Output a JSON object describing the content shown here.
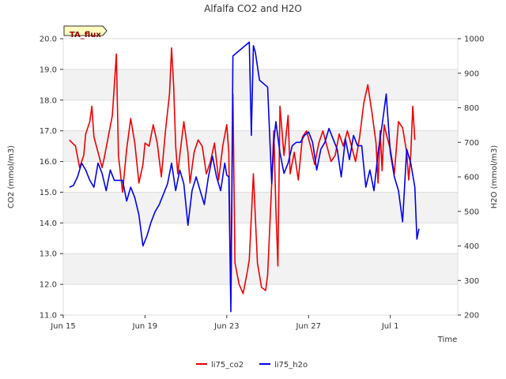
{
  "chart_data": {
    "type": "line",
    "title": "Alfalfa CO2 and H2O",
    "xlabel": "Time",
    "ylabel": "CO2 (mmol/m3)",
    "y2label": "H2O (mmol/m3)",
    "badge": "TA_flux",
    "xlim": [
      0,
      19.3
    ],
    "ylim": [
      11.0,
      20.0
    ],
    "y2lim": [
      200,
      1000
    ],
    "x_ticks": [
      {
        "x": 0,
        "label": "Jun 15"
      },
      {
        "x": 4,
        "label": "Jun 19"
      },
      {
        "x": 8,
        "label": "Jun 23"
      },
      {
        "x": 12,
        "label": "Jun 27"
      },
      {
        "x": 16,
        "label": "Jul 1"
      }
    ],
    "y_ticks": [
      "11.0",
      "12.0",
      "13.0",
      "14.0",
      "15.0",
      "16.0",
      "17.0",
      "18.0",
      "19.0",
      "20.0"
    ],
    "y2_ticks": [
      "200",
      "300",
      "400",
      "500",
      "600",
      "700",
      "800",
      "900",
      "1000"
    ],
    "bands": [
      [
        12.0,
        13.0
      ],
      [
        14.0,
        15.0
      ],
      [
        16.0,
        17.0
      ],
      [
        18.0,
        19.0
      ]
    ],
    "legend": "bottom-center",
    "series": [
      {
        "name": "li75_co2",
        "axis": "left",
        "color": "#ee0000",
        "x": [
          0.3,
          0.6,
          0.8,
          1.0,
          1.1,
          1.3,
          1.4,
          1.5,
          1.7,
          1.9,
          2.0,
          2.2,
          2.4,
          2.6,
          2.7,
          2.9,
          3.1,
          3.3,
          3.5,
          3.7,
          3.9,
          4.0,
          4.2,
          4.4,
          4.6,
          4.8,
          5.0,
          5.2,
          5.3,
          5.4,
          5.5,
          5.6,
          5.7,
          5.9,
          6.1,
          6.2,
          6.4,
          6.6,
          6.8,
          7.0,
          7.2,
          7.4,
          7.6,
          7.8,
          8.0,
          8.1,
          8.2,
          8.3,
          8.4,
          8.6,
          8.8,
          9.0,
          9.1,
          9.3,
          9.5,
          9.7,
          9.9,
          10.0,
          10.1,
          10.2,
          10.3,
          10.4,
          10.5,
          10.6,
          10.8,
          11.0,
          11.1,
          11.3,
          11.5,
          11.7,
          11.9,
          12.1,
          12.3,
          12.5,
          12.7,
          12.9,
          13.1,
          13.3,
          13.5,
          13.7,
          13.9,
          14.1,
          14.3,
          14.5,
          14.7,
          14.9,
          15.1,
          15.3,
          15.4,
          15.5,
          15.6,
          15.7,
          15.8,
          16.0,
          16.2,
          16.4,
          16.6,
          16.8,
          16.9,
          17.0,
          17.1,
          17.2
        ],
        "values": [
          16.7,
          16.5,
          15.8,
          16.2,
          16.9,
          17.3,
          17.8,
          16.8,
          16.3,
          15.8,
          16.1,
          16.8,
          17.5,
          19.5,
          16.2,
          15.0,
          16.4,
          17.4,
          16.6,
          15.3,
          15.9,
          16.6,
          16.5,
          17.2,
          16.6,
          15.5,
          17.0,
          18.2,
          19.7,
          18.5,
          16.5,
          15.6,
          16.2,
          17.3,
          16.3,
          15.3,
          16.3,
          16.7,
          16.5,
          15.6,
          16.0,
          16.6,
          15.4,
          16.5,
          17.2,
          16.3,
          11.5,
          18.2,
          12.7,
          12.0,
          11.7,
          12.4,
          12.8,
          15.6,
          12.7,
          11.9,
          11.8,
          12.3,
          13.8,
          15.3,
          17.0,
          14.5,
          12.6,
          17.8,
          16.2,
          17.5,
          15.6,
          16.3,
          15.4,
          16.8,
          17.0,
          16.5,
          15.9,
          16.6,
          17.0,
          16.5,
          16.0,
          16.2,
          16.9,
          16.5,
          17.0,
          16.5,
          16.0,
          16.8,
          17.9,
          18.5,
          17.6,
          16.6,
          15.3,
          17.0,
          15.7,
          17.2,
          16.9,
          16.4,
          15.6,
          17.3,
          17.1,
          16.3,
          15.4,
          16.2,
          17.8,
          16.7
        ]
      },
      {
        "name": "li75_h2o",
        "axis": "right",
        "color": "#0000ee",
        "x": [
          0.3,
          0.5,
          0.7,
          0.9,
          1.1,
          1.3,
          1.5,
          1.7,
          1.9,
          2.1,
          2.3,
          2.5,
          2.7,
          2.9,
          3.1,
          3.3,
          3.5,
          3.7,
          3.9,
          4.1,
          4.3,
          4.5,
          4.7,
          4.9,
          5.1,
          5.3,
          5.5,
          5.7,
          5.9,
          6.1,
          6.3,
          6.5,
          6.7,
          6.9,
          7.1,
          7.3,
          7.5,
          7.7,
          7.9,
          8.0,
          8.1,
          8.2,
          8.3,
          9.1,
          9.2,
          9.3,
          9.4,
          9.6,
          10.0,
          10.2,
          10.3,
          10.4,
          10.6,
          10.8,
          11.0,
          11.2,
          11.4,
          11.6,
          11.8,
          12.0,
          12.2,
          12.4,
          12.6,
          12.8,
          13.0,
          13.2,
          13.4,
          13.6,
          13.8,
          14.0,
          14.2,
          14.4,
          14.6,
          14.8,
          15.0,
          15.2,
          15.4,
          15.6,
          15.8,
          16.0,
          16.2,
          16.4,
          16.6,
          16.8,
          17.0,
          17.2,
          17.3,
          17.4
        ],
        "values": [
          570,
          575,
          600,
          640,
          620,
          590,
          570,
          640,
          610,
          560,
          620,
          590,
          590,
          590,
          530,
          570,
          540,
          490,
          400,
          430,
          470,
          500,
          520,
          550,
          580,
          640,
          560,
          620,
          580,
          460,
          560,
          600,
          560,
          520,
          600,
          660,
          600,
          560,
          640,
          605,
          600,
          210,
          950,
          990,
          720,
          980,
          960,
          880,
          860,
          580,
          700,
          760,
          670,
          610,
          640,
          690,
          700,
          700,
          720,
          730,
          700,
          620,
          680,
          700,
          740,
          710,
          680,
          600,
          710,
          650,
          720,
          690,
          690,
          570,
          620,
          560,
          670,
          750,
          840,
          670,
          600,
          560,
          470,
          680,
          640,
          570,
          420,
          450
        ]
      }
    ]
  }
}
